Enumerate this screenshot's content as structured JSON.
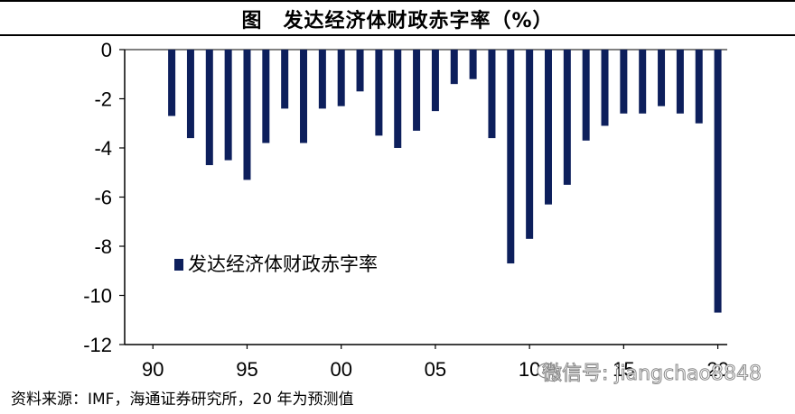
{
  "title": "图　发达经济体财政赤字率（%）",
  "source": "资料来源：IMF，海通证券研究所，20 年为预测值",
  "watermark": "微信号: jiangchao8848",
  "chart_data": {
    "type": "bar",
    "ylim": [
      -12,
      0
    ],
    "yticks": [
      0,
      -2,
      -4,
      -6,
      -8,
      -10,
      -12
    ],
    "xtick_labels": [
      "90",
      "95",
      "00",
      "05",
      "10",
      "15",
      "20"
    ],
    "legend": "发达经济体财政赤字率",
    "legend_position": "left-middle",
    "bar_color": "#0d1f5c",
    "grid": false,
    "series": [
      {
        "years": [
          1991,
          1992,
          1993,
          1994,
          1995,
          1996,
          1997,
          1998,
          1999,
          2000,
          2001,
          2002,
          2003,
          2004,
          2005,
          2006,
          2007,
          2008,
          2009,
          2010,
          2011,
          2012,
          2013,
          2014,
          2015,
          2016,
          2017,
          2018,
          2019,
          2020
        ],
        "values": [
          -2.7,
          -3.6,
          -4.7,
          -4.5,
          -5.3,
          -3.8,
          -2.4,
          -3.8,
          -2.4,
          -2.3,
          -1.7,
          -3.5,
          -4.0,
          -3.3,
          -2.5,
          -1.4,
          -1.2,
          -3.6,
          -8.7,
          -7.7,
          -6.3,
          -5.5,
          -3.7,
          -3.1,
          -2.6,
          -2.6,
          -2.3,
          -2.6,
          -3.0,
          -10.7
        ]
      }
    ]
  }
}
